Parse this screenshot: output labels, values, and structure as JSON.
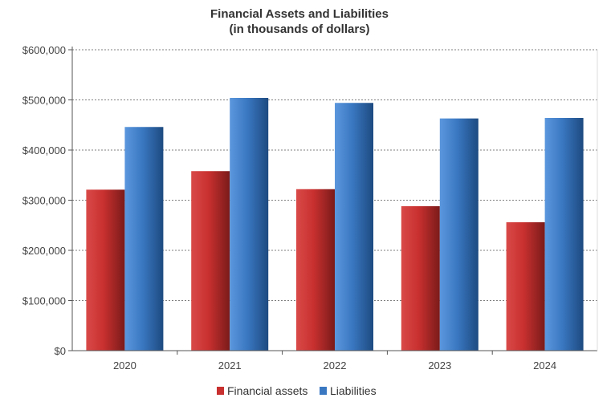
{
  "chart_data": {
    "type": "bar",
    "title": "Financial Assets and Liabilities",
    "subtitle": "(in thousands of dollars)",
    "categories": [
      "2020",
      "2021",
      "2022",
      "2023",
      "2024"
    ],
    "series": [
      {
        "name": "Financial assets",
        "values": [
          321000,
          358000,
          322000,
          288000,
          256000
        ],
        "color": "#c8302f"
      },
      {
        "name": "Liabilities",
        "values": [
          446000,
          504000,
          494000,
          463000,
          464000
        ],
        "color": "#3a78c2"
      }
    ],
    "y_ticks": [
      "$0",
      "$100,000",
      "$200,000",
      "$300,000",
      "$400,000",
      "$500,000",
      "$600,000"
    ],
    "ylim": [
      0,
      600000
    ],
    "grid": true,
    "legend_position": "bottom"
  }
}
